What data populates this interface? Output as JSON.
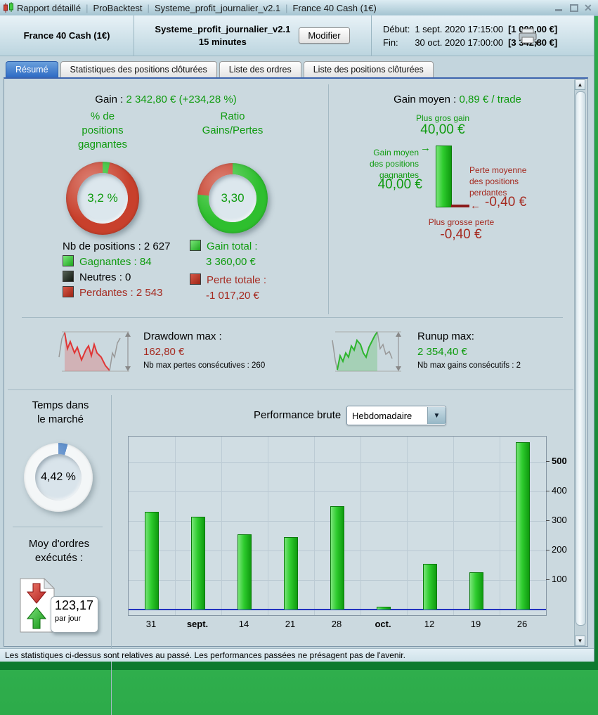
{
  "titlebar": {
    "parts": [
      "Rapport détaillé",
      "ProBacktest",
      "Systeme_profit_journalier_v2.1",
      "France 40 Cash (1€)"
    ]
  },
  "header": {
    "instrument": "France 40 Cash (1€)",
    "system_name": "Systeme_profit_journalier_v2.1",
    "timeframe": "15 minutes",
    "modify_button": "Modifier",
    "start_label": "Début:",
    "start_datetime": "1 sept. 2020 17:15:00",
    "start_capital": "[1 000,00 €]",
    "end_label": "Fin:",
    "end_datetime": "30 oct. 2020 17:00:00",
    "end_capital": "[3 342,80 €]"
  },
  "tabs": [
    {
      "label": "Résumé",
      "active": true
    },
    {
      "label": "Statistiques des positions clôturées",
      "active": false
    },
    {
      "label": "Liste des ordres",
      "active": false
    },
    {
      "label": "Liste des positions clôturées",
      "active": false
    }
  ],
  "summary": {
    "gain_label": "Gain :",
    "gain_value": "2 342,80 € (+234,28 %)",
    "win_rate_title": "% de\npositions\ngagnantes",
    "win_rate": "3,2 %",
    "ratio_title": "Ratio\nGains/Pertes",
    "ratio": "3,30",
    "nb_positions": "Nb de positions : 2 627",
    "gagnantes": "Gagnantes : 84",
    "neutres": "Neutres : 0",
    "perdantes": "Perdantes : 2 543",
    "gain_total_label": "Gain total :",
    "gain_total": "3 360,00 €",
    "perte_total_label": "Perte totale :",
    "perte_total": "-1 017,20 €"
  },
  "avg": {
    "title_label": "Gain moyen :",
    "title_value": "0,89 € / trade",
    "biggest_gain_label": "Plus gros gain",
    "biggest_gain": "40,00 €",
    "avg_win_label": "Gain moyen\ndes positions\ngagnantes",
    "avg_win": "40,00 €",
    "avg_loss_label": "Perte moyenne\ndes positions\nperdantes",
    "avg_loss": "-0,40 €",
    "biggest_loss_label": "Plus grosse perte",
    "biggest_loss": "-0,40 €",
    "arrow_right": "→",
    "arrow_left": "←"
  },
  "drawdown": {
    "label": "Drawdown max :",
    "value": "162,80 €",
    "sub": "Nb max pertes consécutives : 260"
  },
  "runup": {
    "label": "Runup max:",
    "value": "2 354,40 €",
    "sub": "Nb max gains consécutifs : 2"
  },
  "market_time": {
    "title": "Temps dans\nle marché",
    "value": "4,42 %",
    "percent": 4.42
  },
  "orders": {
    "title": "Moy d'ordres\nexécutés :",
    "value": "123,17",
    "unit": "par jour"
  },
  "performance": {
    "label": "Performance brute",
    "period": "Hebdomadaire"
  },
  "chart_data": {
    "type": "bar",
    "title": "Performance brute (Hebdomadaire)",
    "categories": [
      "31",
      "sept.",
      "14",
      "21",
      "28",
      "oct.",
      "12",
      "19",
      "26"
    ],
    "bold_categories": [
      "sept.",
      "oct."
    ],
    "values": [
      330,
      315,
      255,
      245,
      350,
      10,
      155,
      125,
      565
    ],
    "xlabel": "",
    "ylabel": "",
    "yticks": [
      100,
      200,
      300,
      400,
      500
    ],
    "ylim": [
      0,
      585
    ],
    "grid": true,
    "bar_color": "#2ecc2e",
    "zero_line_color": "#2433c0"
  },
  "donuts": {
    "win_percent": 3.2,
    "ratio_green_percent": 76.7
  },
  "footer": {
    "disclaimer": "Les statistiques ci-dessus sont relatives au passé. Les performances passées ne présagent pas de l'avenir."
  },
  "colors": {
    "text_green": "#0f9b0f",
    "text_red": "#a52a20",
    "donut_green": "#2ebf2e",
    "donut_red": "#c8402c",
    "time_blue": "#4a80c4",
    "active_tab_blue": "#2e6bc4"
  }
}
